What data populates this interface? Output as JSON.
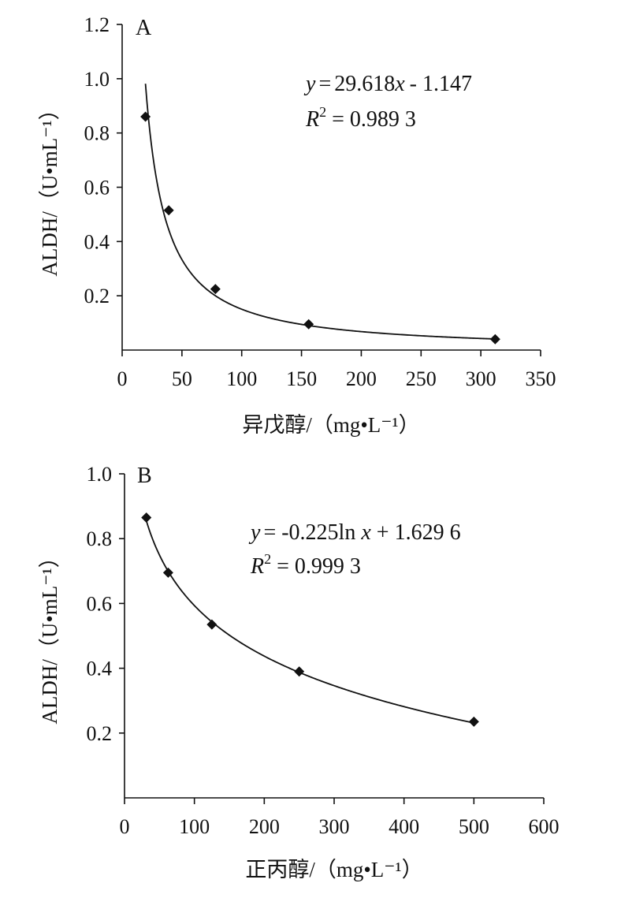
{
  "chart_data": [
    {
      "type": "scatter",
      "panel_label": "A",
      "xlabel": "异戊醇/（mg•L⁻¹）",
      "ylabel": "ALDH/（U•mL⁻¹）",
      "xlim": [
        0,
        350
      ],
      "ylim": [
        0,
        1.2
      ],
      "x_ticks": [
        0,
        50,
        100,
        150,
        200,
        250,
        300,
        350
      ],
      "y_ticks": [
        0.2,
        0.4,
        0.6,
        0.8,
        1.0,
        1.2
      ],
      "x_tick_labels": [
        "0",
        "50",
        "100",
        "150",
        "200",
        "250",
        "300",
        "350"
      ],
      "y_tick_labels": [
        "0.2",
        "0.4",
        "0.6",
        "0.8",
        "1.0",
        "1.2"
      ],
      "grid": false,
      "points": {
        "x": [
          19.5,
          39,
          78,
          156,
          312
        ],
        "y": [
          0.86,
          0.515,
          0.225,
          0.095,
          0.04
        ]
      },
      "trendline": {
        "model": "power",
        "a": 29.618,
        "b": -1.147,
        "x_range": [
          19.5,
          312
        ]
      },
      "equation": {
        "y_var": "y",
        "eq_sign": "=",
        "rhs_coef": "29.618",
        "x_var": "x",
        "exponent": "- 1.147"
      },
      "r2": {
        "r_var": "R",
        "sup": "2",
        "rest": " = 0.989 3"
      }
    },
    {
      "type": "scatter",
      "panel_label": "B",
      "xlabel": "正丙醇/（mg•L⁻¹）",
      "ylabel": "ALDH/（U•mL⁻¹）",
      "xlim": [
        0,
        600
      ],
      "ylim": [
        0,
        1.0
      ],
      "x_ticks": [
        0,
        100,
        200,
        300,
        400,
        500,
        600
      ],
      "y_ticks": [
        0.2,
        0.4,
        0.6,
        0.8,
        1.0
      ],
      "x_tick_labels": [
        "0",
        "100",
        "200",
        "300",
        "400",
        "500",
        "600"
      ],
      "y_tick_labels": [
        "0.2",
        "0.4",
        "0.6",
        "0.8",
        "1.0"
      ],
      "grid": false,
      "points": {
        "x": [
          31.25,
          62.5,
          125,
          250,
          500
        ],
        "y": [
          0.865,
          0.695,
          0.535,
          0.39,
          0.235
        ]
      },
      "trendline": {
        "model": "log",
        "a": -0.225,
        "b": 1.6296,
        "x_range": [
          31.25,
          500
        ]
      },
      "equation": {
        "y_var": "y",
        "eq_sign": "=",
        "rhs_pre": " -0.225ln ",
        "x_var": "x",
        "rhs_post": " + 1.629 6"
      },
      "r2": {
        "r_var": "R",
        "sup": "2",
        "rest": " = 0.999 3"
      }
    }
  ]
}
